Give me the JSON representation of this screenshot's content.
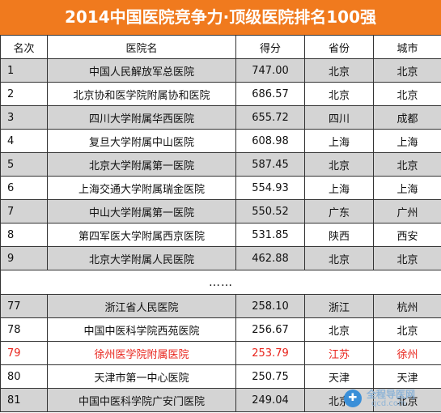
{
  "title": "2014中国医院竞争力·顶级医院排名100强",
  "columns": [
    "名次",
    "医院名",
    "得分",
    "省份",
    "城市"
  ],
  "rows_top": [
    {
      "rank": "1",
      "name": "中国人民解放军总医院",
      "score": "747.00",
      "province": "北京",
      "city": "北京"
    },
    {
      "rank": "2",
      "name": "北京协和医学院附属协和医院",
      "score": "686.57",
      "province": "北京",
      "city": "北京"
    },
    {
      "rank": "3",
      "name": "四川大学附属华西医院",
      "score": "655.72",
      "province": "四川",
      "city": "成都"
    },
    {
      "rank": "4",
      "name": "复旦大学附属中山医院",
      "score": "608.98",
      "province": "上海",
      "city": "上海"
    },
    {
      "rank": "5",
      "name": "北京大学附属第一医院",
      "score": "587.45",
      "province": "北京",
      "city": "北京"
    },
    {
      "rank": "6",
      "name": "上海交通大学附属瑞金医院",
      "score": "554.93",
      "province": "上海",
      "city": "上海"
    },
    {
      "rank": "7",
      "name": "中山大学附属第一医院",
      "score": "550.52",
      "province": "广东",
      "city": "广州"
    },
    {
      "rank": "8",
      "name": "第四军医大学附属西京医院",
      "score": "531.85",
      "province": "陕西",
      "city": "西安"
    },
    {
      "rank": "9",
      "name": "北京大学附属人民医院",
      "score": "462.88",
      "province": "北京",
      "city": "北京"
    }
  ],
  "ellipsis": "……",
  "rows_bottom": [
    {
      "rank": "77",
      "name": "浙江省人民医院",
      "score": "258.10",
      "province": "浙江",
      "city": "杭州"
    },
    {
      "rank": "78",
      "name": "中国中医科学院西苑医院",
      "score": "256.67",
      "province": "北京",
      "city": "北京"
    },
    {
      "rank": "79",
      "name": "徐州医学院附属医院",
      "score": "253.79",
      "province": "江苏",
      "city": "徐州"
    },
    {
      "rank": "80",
      "name": "天津市第一中心医院",
      "score": "250.75",
      "province": "天津",
      "city": "天津"
    },
    {
      "rank": "81",
      "name": "中国中医科学院广安门医院",
      "score": "249.04",
      "province": "北京",
      "city": "北京"
    }
  ],
  "highlight_rank": "79",
  "colors": {
    "header_bg": "#f07a1e",
    "stripe": "#d4d4d4",
    "highlight": "#e8231b"
  },
  "watermark": {
    "icon": "qcd-logo-icon",
    "text1": "全程导医网",
    "text2": "qcd.com"
  }
}
